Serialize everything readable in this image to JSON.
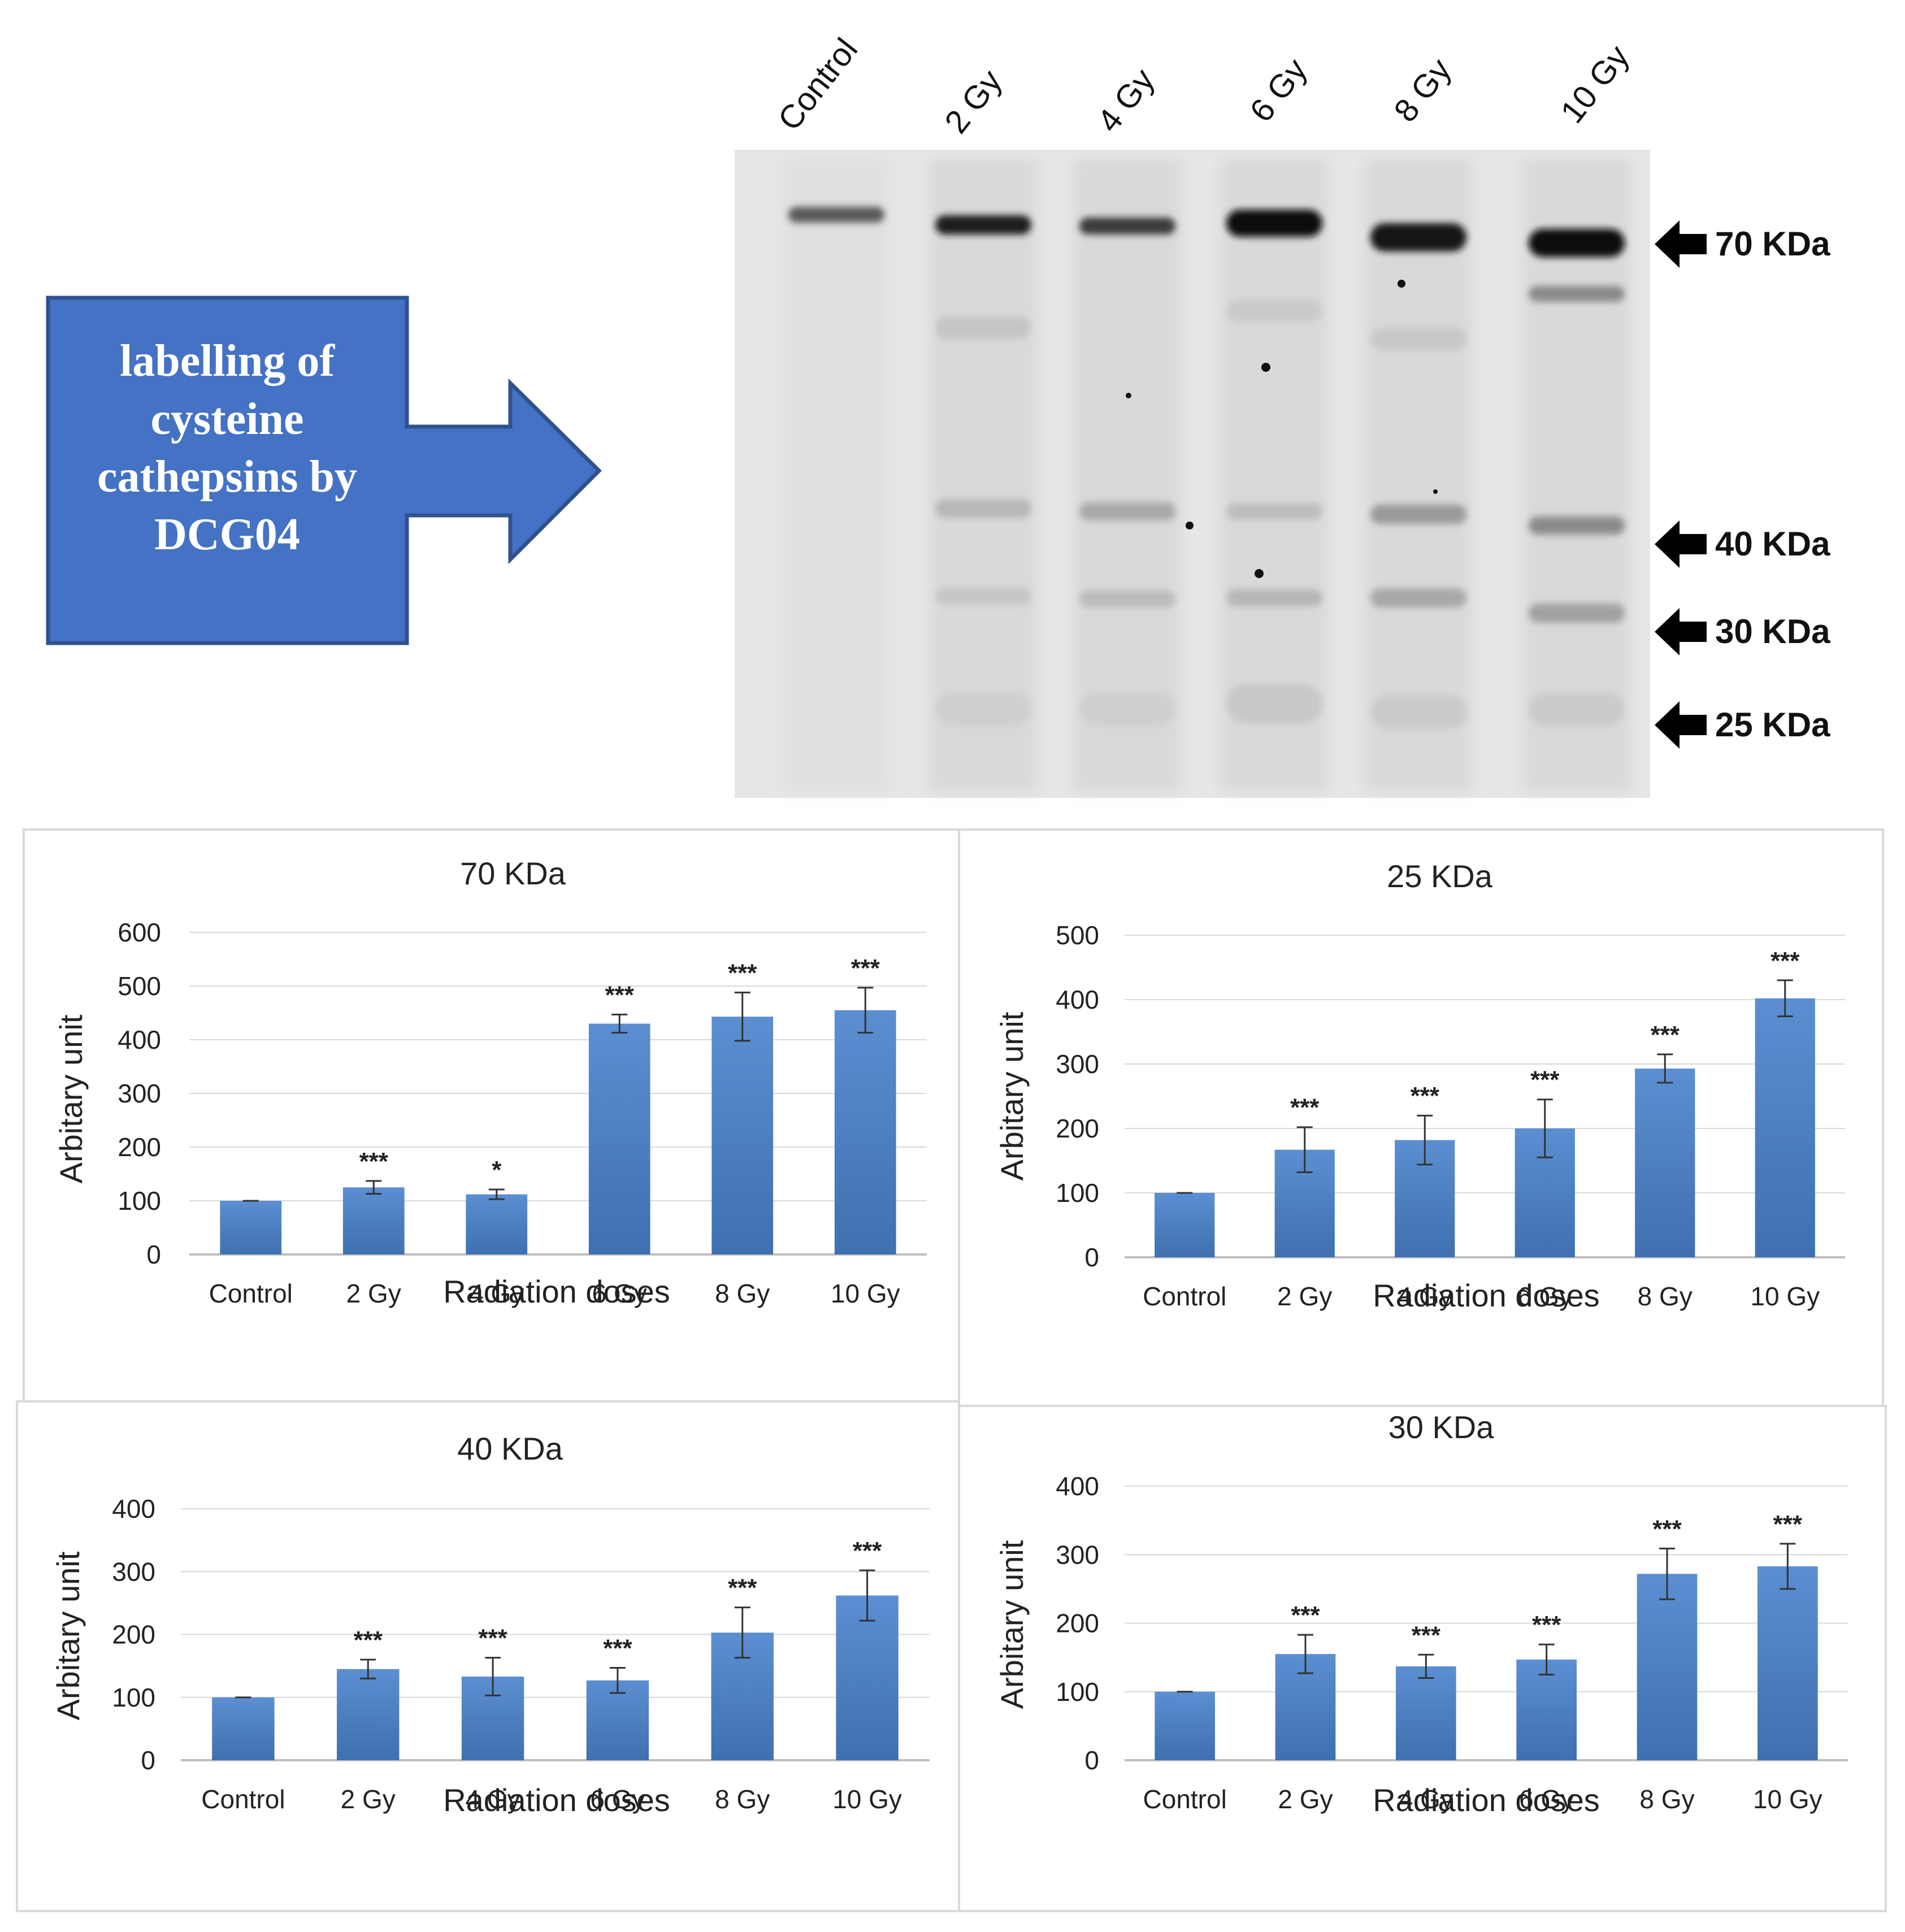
{
  "callout": {
    "lines": [
      "labelling of",
      "cysteine",
      "cathepsins by",
      "DCG04"
    ],
    "fill": "#4472c4",
    "border": "#2f528f"
  },
  "blot": {
    "lanes": [
      "Control",
      "2 Gy",
      "4 Gy",
      "6 Gy",
      "8 Gy",
      "10 Gy"
    ],
    "markers": [
      "70 KDa",
      "40 KDa",
      "30 KDa",
      "25 KDa"
    ]
  },
  "colors": {
    "bar": "#4a7ebb",
    "bar_light": "#5b8fd1",
    "axis": "#d9d9d9",
    "text": "#222222"
  },
  "chart_data": [
    {
      "type": "bar",
      "title": "70 KDa",
      "xlabel": "Radiation doses",
      "ylabel": "Arbitary unit",
      "categories": [
        "Control",
        "2 Gy",
        "4 Gy",
        "6 Gy",
        "8 Gy",
        "10 Gy"
      ],
      "values": [
        100,
        125,
        112,
        430,
        443,
        455
      ],
      "errors": [
        0,
        12,
        9,
        17,
        45,
        42
      ],
      "significance": [
        "",
        "***",
        "*",
        "***",
        "***",
        "***"
      ],
      "ylim": [
        0,
        600
      ],
      "yticks": [
        0,
        100,
        200,
        300,
        400,
        500,
        600
      ],
      "grid": true
    },
    {
      "type": "bar",
      "title": "25 KDa",
      "xlabel": "Radiation doses",
      "ylabel": "Arbitary unit",
      "categories": [
        "Control",
        "2 Gy",
        "4 Gy",
        "6 Gy",
        "8 Gy",
        "10 Gy"
      ],
      "values": [
        100,
        167,
        182,
        200,
        293,
        402
      ],
      "errors": [
        0,
        35,
        38,
        45,
        22,
        28
      ],
      "significance": [
        "",
        "***",
        "***",
        "***",
        "***",
        "***"
      ],
      "ylim": [
        0,
        500
      ],
      "yticks": [
        0,
        100,
        200,
        300,
        400,
        500
      ],
      "grid": true
    },
    {
      "type": "bar",
      "title": "40 KDa",
      "xlabel": "Radiation doses",
      "ylabel": "Arbitary unit",
      "categories": [
        "Control",
        "2 Gy",
        "4 Gy",
        "6 Gy",
        "8 Gy",
        "10 Gy"
      ],
      "values": [
        100,
        145,
        133,
        127,
        203,
        262
      ],
      "errors": [
        0,
        15,
        30,
        20,
        40,
        40
      ],
      "significance": [
        "",
        "***",
        "***",
        "***",
        "***",
        "***"
      ],
      "ylim": [
        0,
        400
      ],
      "yticks": [
        0,
        100,
        200,
        300,
        400
      ],
      "grid": true
    },
    {
      "type": "bar",
      "title": "30 KDa",
      "xlabel": "Radiation doses",
      "ylabel": "Arbitary unit",
      "categories": [
        "Control",
        "2 Gy",
        "4 Gy",
        "6 Gy",
        "8 Gy",
        "10 Gy"
      ],
      "values": [
        100,
        155,
        137,
        147,
        272,
        283
      ],
      "errors": [
        0,
        28,
        17,
        22,
        37,
        33
      ],
      "significance": [
        "",
        "***",
        "***",
        "***",
        "***",
        "***"
      ],
      "ylim": [
        0,
        400
      ],
      "yticks": [
        0,
        100,
        200,
        300,
        400
      ],
      "grid": true
    }
  ]
}
